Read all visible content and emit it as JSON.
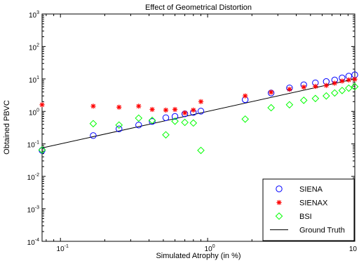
{
  "chart_data": {
    "type": "scatter",
    "title": "Effect of Geometrical Distortion",
    "xlabel": "Simulated Atrophy (in %)",
    "ylabel": "Obtained PBVC",
    "xscale": "log",
    "yscale": "log",
    "xlim": [
      0.075,
      10
    ],
    "ylim": [
      0.0001,
      1000
    ],
    "x_ticks": [
      {
        "value": 0.1,
        "base": "10",
        "exp": "-1"
      },
      {
        "value": 1,
        "base": "10",
        "exp": "0"
      },
      {
        "value": 10,
        "base": "10",
        "exp": ""
      }
    ],
    "y_ticks": [
      {
        "value": 0.0001,
        "base": "10",
        "exp": "-4"
      },
      {
        "value": 0.001,
        "base": "10",
        "exp": "-3"
      },
      {
        "value": 0.01,
        "base": "10",
        "exp": "-2"
      },
      {
        "value": 0.1,
        "base": "10",
        "exp": "-1"
      },
      {
        "value": 1,
        "base": "10",
        "exp": "0"
      },
      {
        "value": 10,
        "base": "10",
        "exp": "1"
      },
      {
        "value": 100,
        "base": "10",
        "exp": "2"
      },
      {
        "value": 1000,
        "base": "10",
        "exp": "3"
      }
    ],
    "grid": false,
    "legend_position": "bottom-right",
    "series": [
      {
        "name": "SIENA",
        "marker": "circle",
        "color": "#0000ff",
        "x": [
          0.075,
          0.167,
          0.25,
          0.34,
          0.42,
          0.52,
          0.6,
          0.7,
          0.8,
          0.9,
          1.8,
          2.7,
          3.6,
          4.5,
          5.4,
          6.4,
          7.3,
          8.2,
          9.1,
          10
        ],
        "y": [
          0.063,
          0.18,
          0.29,
          0.38,
          0.49,
          0.64,
          0.7,
          0.84,
          0.93,
          1.02,
          2.3,
          3.7,
          5.3,
          6.6,
          7.6,
          8.3,
          9.3,
          10.8,
          12.2,
          13.4
        ]
      },
      {
        "name": "SIENAX",
        "marker": "star",
        "color": "#ff0000",
        "x": [
          0.075,
          0.167,
          0.25,
          0.34,
          0.42,
          0.52,
          0.6,
          0.7,
          0.8,
          0.9,
          1.8,
          2.7,
          3.6,
          4.5,
          5.4,
          6.4,
          7.3,
          8.2,
          9.1,
          10
        ],
        "y": [
          1.6,
          1.45,
          1.35,
          1.45,
          1.15,
          1.1,
          1.15,
          0.9,
          1.1,
          2.0,
          3.0,
          3.9,
          4.8,
          5.6,
          5.9,
          6.3,
          7.4,
          8.6,
          9.3,
          9.8
        ]
      },
      {
        "name": "BSI",
        "marker": "diamond",
        "color": "#00ff00",
        "x": [
          0.075,
          0.167,
          0.25,
          0.34,
          0.42,
          0.52,
          0.6,
          0.7,
          0.8,
          0.9,
          1.8,
          2.7,
          3.6,
          4.5,
          5.4,
          6.4,
          7.3,
          8.2,
          9.1,
          10
        ],
        "y": [
          0.065,
          0.42,
          0.38,
          0.62,
          0.53,
          0.19,
          0.5,
          0.46,
          0.44,
          0.063,
          0.58,
          1.3,
          1.6,
          2.2,
          2.5,
          3.0,
          3.7,
          4.4,
          5.2,
          5.8
        ]
      },
      {
        "name": "Ground Truth",
        "marker": "line",
        "color": "#000000",
        "x": [
          0.075,
          10
        ],
        "y": [
          0.075,
          10
        ]
      }
    ]
  }
}
